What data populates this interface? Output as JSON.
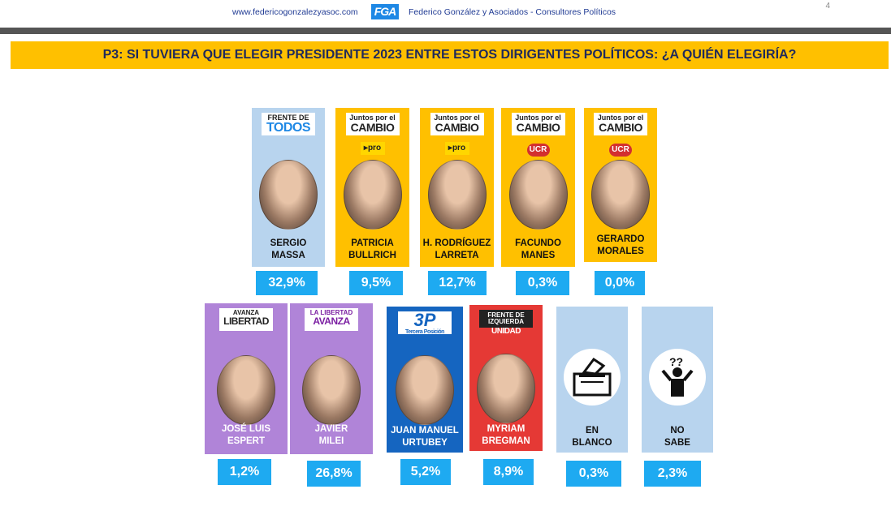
{
  "header": {
    "url": "www.federicogonzalezyasoc.com",
    "logo": "FGA",
    "firm": "Federico González y Asociados - Consultores Políticos",
    "page": "4"
  },
  "title": "P3: SI TUVIERA QUE ELEGIR PRESIDENTE 2023 ENTRE ESTOS DIRIGENTES POLÍTICOS:  ¿A QUIÉN ELEGIRÍA?",
  "colors": {
    "accent": "#ffc000",
    "pct": "#1eaaf1",
    "ft": "#b8d4ee",
    "jxc": "#ffc000",
    "lib": "#b084d8",
    "tp": "#1565c0",
    "fit": "#e53935",
    "other": "#b8d4ee"
  },
  "chart_data": {
    "type": "table",
    "candidates": [
      {
        "name": "SERGIO\nMASSA",
        "party1": "FRENTE DE",
        "party2": "TODOS",
        "sub": "",
        "value": 32.9,
        "label": "32,9%"
      },
      {
        "name": "PATRICIA\nBULLRICH",
        "party1": "Juntos por el",
        "party2": "CAMBIO",
        "sub": "pro",
        "value": 9.5,
        "label": "9,5%"
      },
      {
        "name": "H. RODRÍGUEZ\nLARRETA",
        "party1": "Juntos por el",
        "party2": "CAMBIO",
        "sub": "pro",
        "value": 12.7,
        "label": "12,7%"
      },
      {
        "name": "FACUNDO\nMANES",
        "party1": "Juntos por el",
        "party2": "CAMBIO",
        "sub": "UCR",
        "value": 0.3,
        "label": "0,3%"
      },
      {
        "name": "GERARDO\nMORALES",
        "party1": "Juntos por el",
        "party2": "CAMBIO",
        "sub": "UCR",
        "value": 0.0,
        "label": "0,0%"
      },
      {
        "name": "JOSÉ LUIS\nESPERT",
        "party1": "AVANZA",
        "party2": "LIBERTAD",
        "sub": "",
        "value": 1.2,
        "label": "1,2%"
      },
      {
        "name": "JAVIER\nMILEI",
        "party1": "LA LIBERTAD",
        "party2": "AVANZA",
        "sub": "",
        "value": 26.8,
        "label": "26,8%"
      },
      {
        "name": "JUAN MANUEL\nURTUBEY",
        "party1": "3P",
        "party2": "Tercera Posición",
        "sub": "",
        "value": 5.2,
        "label": "5,2%"
      },
      {
        "name": "MYRIAM\nBREGMAN",
        "party1": "FRENTE DE IZQUIERDA",
        "party2": "UNIDAD",
        "sub": "",
        "value": 8.9,
        "label": "8,9%"
      },
      {
        "name": "EN\nBLANCO",
        "party1": "",
        "party2": "",
        "sub": "",
        "value": 0.3,
        "label": "0,3%"
      },
      {
        "name": "NO\nSABE",
        "party1": "",
        "party2": "",
        "sub": "",
        "value": 2.3,
        "label": "2,3%"
      }
    ]
  }
}
